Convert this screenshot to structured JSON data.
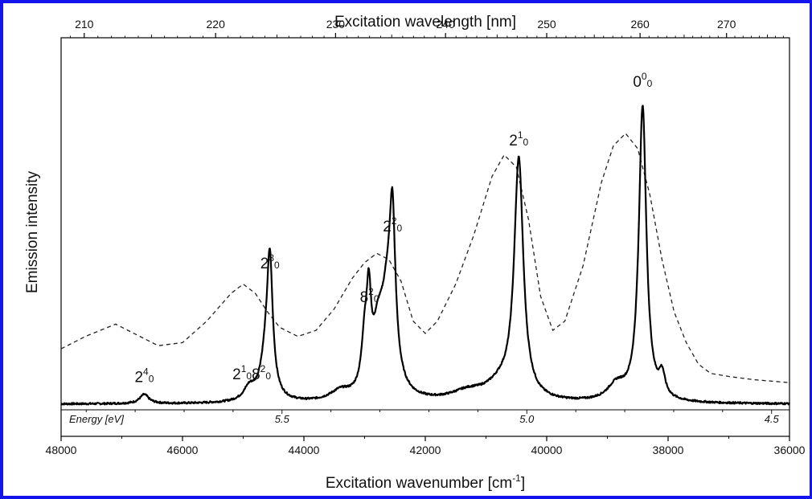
{
  "chart_data": {
    "type": "line",
    "title": "",
    "xlabel": "Excitation wavenumber [cm",
    "xlabel_sup": "-1",
    "xlabel_suffix": "]",
    "x2label": "Excitation wavelength [nm]",
    "ylabel": "Emission intensity",
    "xlim": [
      48000,
      36000
    ],
    "x_reversed": true,
    "x_ticks": [
      48000,
      46000,
      44000,
      42000,
      40000,
      38000,
      36000
    ],
    "x_tick_labels": [
      "48000",
      "46000",
      "44000",
      "42000",
      "40000",
      "38000",
      "36000"
    ],
    "x2_ticks": [
      210,
      220,
      230,
      240,
      250,
      260,
      270
    ],
    "x2_tick_labels": [
      "210",
      "220",
      "230",
      "240",
      "250",
      "260",
      "270"
    ],
    "ylim": [
      0,
      1
    ],
    "energy_axis_title": "Energy [eV]",
    "energy_ticks": [
      {
        "ev": 5.5,
        "label": "5.5"
      },
      {
        "ev": 5.0,
        "label": "5.0"
      },
      {
        "ev": 4.5,
        "label": "4.5"
      }
    ],
    "grid": false,
    "series": [
      {
        "style": "solid",
        "color": "#000000",
        "peaks": [
          {
            "x": 38420,
            "height": 0.96,
            "w": 75
          },
          {
            "x": 38100,
            "height": 0.07,
            "w": 60
          },
          {
            "x": 38850,
            "height": 0.05,
            "w": 180
          },
          {
            "x": 40460,
            "height": 0.77,
            "w": 90
          },
          {
            "x": 40750,
            "height": 0.05,
            "w": 300
          },
          {
            "x": 41300,
            "height": 0.03,
            "w": 350
          },
          {
            "x": 42540,
            "height": 0.44,
            "w": 55
          },
          {
            "x": 42620,
            "height": 0.3,
            "w": 130
          },
          {
            "x": 42780,
            "height": 0.16,
            "w": 110
          },
          {
            "x": 42930,
            "height": 0.26,
            "w": 45
          },
          {
            "x": 43000,
            "height": 0.15,
            "w": 60
          },
          {
            "x": 43400,
            "height": 0.03,
            "w": 200
          },
          {
            "x": 44560,
            "height": 0.39,
            "w": 55
          },
          {
            "x": 44620,
            "height": 0.14,
            "w": 110
          },
          {
            "x": 44900,
            "height": 0.04,
            "w": 110
          },
          {
            "x": 46630,
            "height": 0.03,
            "w": 90
          }
        ]
      },
      {
        "style": "dashed",
        "color": "#222222",
        "x": [
          48000,
          47600,
          47100,
          46800,
          46400,
          46000,
          45600,
          45200,
          45000,
          44800,
          44600,
          44400,
          44100,
          43800,
          43500,
          43200,
          43000,
          42800,
          42600,
          42400,
          42200,
          42000,
          41800,
          41500,
          41200,
          40900,
          40700,
          40500,
          40300,
          40100,
          39900,
          39700,
          39400,
          39100,
          38900,
          38700,
          38500,
          38300,
          38100,
          37900,
          37700,
          37500,
          37300,
          37000,
          36600,
          36000
        ],
        "y": [
          0.18,
          0.22,
          0.26,
          0.23,
          0.19,
          0.2,
          0.27,
          0.36,
          0.39,
          0.36,
          0.3,
          0.25,
          0.22,
          0.24,
          0.31,
          0.41,
          0.46,
          0.49,
          0.47,
          0.4,
          0.27,
          0.23,
          0.27,
          0.39,
          0.55,
          0.74,
          0.81,
          0.77,
          0.6,
          0.35,
          0.24,
          0.27,
          0.45,
          0.72,
          0.84,
          0.88,
          0.83,
          0.68,
          0.47,
          0.3,
          0.2,
          0.13,
          0.1,
          0.09,
          0.08,
          0.07
        ]
      }
    ],
    "peak_annotations": [
      {
        "x": 46630,
        "y": 0.04,
        "base": "2",
        "sub": "0",
        "sup": "4"
      },
      {
        "x": 44860,
        "y": 0.05,
        "base": "2",
        "sub": "0",
        "sup": "1",
        "base2": "8",
        "sub2": "0",
        "sup2": "2"
      },
      {
        "x": 44560,
        "y": 0.41,
        "base": "2",
        "sub": "0",
        "sup": "3"
      },
      {
        "x": 42920,
        "y": 0.3,
        "base": "8",
        "sub": "0",
        "sup": "2"
      },
      {
        "x": 42540,
        "y": 0.53,
        "base": "2",
        "sub": "0",
        "sup": "2"
      },
      {
        "x": 40460,
        "y": 0.81,
        "base": "2",
        "sub": "0",
        "sup": "1"
      },
      {
        "x": 38420,
        "y": 1.0,
        "base": "0",
        "sub": "0",
        "sup": "0"
      }
    ]
  }
}
